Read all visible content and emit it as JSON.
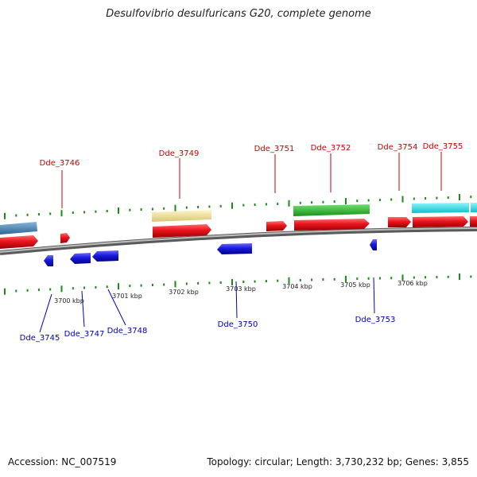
{
  "title": "Desulfovibrio desulfuricans G20, complete genome",
  "footer": {
    "accession": "Accession: NC_007519",
    "summary": "Topology: circular; Length: 3,730,232 bp; Genes: 3,855"
  },
  "colors": {
    "forward_cds": "#e8141e",
    "reverse_cds": "#1a1adb",
    "forward_label": "#cc0000",
    "reverse_label": "#0000bb",
    "tick": "#1a8a1a",
    "backbone": "#888888",
    "feature_tan": "#f0e29a",
    "feature_green": "#2dbb2d",
    "feature_cyan": "#19e1ee",
    "feature_steel": "#4a86b8"
  },
  "ruler": {
    "labels": [
      "3700 kbp",
      "3701 kbp",
      "3702 kbp",
      "3703 kbp",
      "3704 kbp",
      "3705 kbp",
      "3706 kbp"
    ]
  },
  "forward_genes": [
    "Dde_3746",
    "Dde_3749",
    "Dde_3751",
    "Dde_3752",
    "Dde_3754",
    "Dde_3755"
  ],
  "reverse_genes": [
    "Dde_3745",
    "Dde_3747",
    "Dde_3748",
    "Dde_3750",
    "Dde_3753"
  ]
}
